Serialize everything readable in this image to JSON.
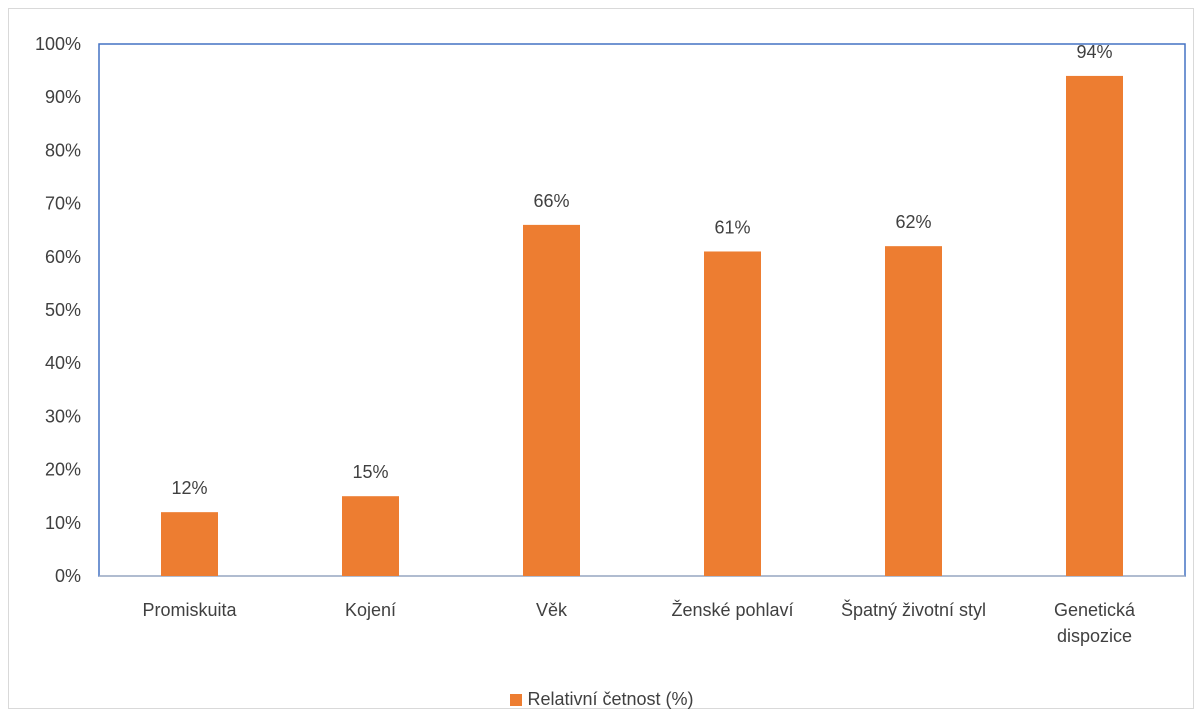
{
  "chart_data": {
    "type": "bar",
    "categories": [
      [
        "Promiskuita"
      ],
      [
        "Kojení"
      ],
      [
        "Věk"
      ],
      [
        "Ženské pohlaví"
      ],
      [
        "Špatný životní styl"
      ],
      [
        "Genetická",
        "dispozice"
      ]
    ],
    "series": [
      {
        "name": "Relativní četnost (%)",
        "values": [
          12,
          15,
          66,
          61,
          62,
          94
        ],
        "color": "#ED7D31"
      }
    ],
    "data_labels": [
      "12%",
      "15%",
      "66%",
      "61%",
      "62%",
      "94%"
    ],
    "y_ticks": [
      "0%",
      "10%",
      "20%",
      "30%",
      "40%",
      "50%",
      "60%",
      "70%",
      "80%",
      "90%",
      "100%"
    ],
    "ylim": [
      0,
      100
    ],
    "y_step": 10,
    "plot_border_color": "#4472C4",
    "legend_position": "bottom",
    "grid": false
  }
}
